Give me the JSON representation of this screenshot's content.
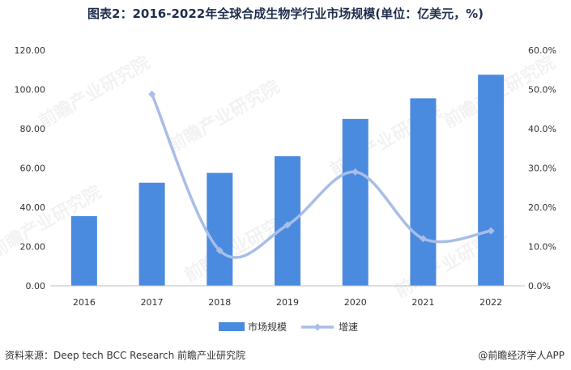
{
  "title": "图表2：2016-2022年全球合成生物学行业市场规模(单位：亿美元，%)",
  "source": "资料来源：Deep tech BCC Research 前瞻产业研究院",
  "brand": "@前瞻经济学人APP",
  "watermark": "前瞻产业研究院",
  "colors": {
    "bar": "#4a8be0",
    "line": "#a8bde8",
    "grid": "#e6e6e6",
    "axis": "#bfbfbf"
  },
  "chart_data": {
    "type": "bar",
    "categories": [
      "2016",
      "2017",
      "2018",
      "2019",
      "2020",
      "2021",
      "2022"
    ],
    "series": [
      {
        "name": "市场规模",
        "type": "bar",
        "axis": "left",
        "values": [
          35.5,
          52.5,
          57.5,
          66.0,
          85.0,
          95.5,
          107.5
        ]
      },
      {
        "name": "增速",
        "type": "line",
        "axis": "right",
        "values": [
          null,
          48.8,
          9.0,
          15.5,
          29.0,
          12.0,
          14.0
        ]
      }
    ],
    "y_left": {
      "min": 0,
      "max": 120,
      "step": 20,
      "tick_labels": [
        "0.00",
        "20.00",
        "40.00",
        "60.00",
        "80.00",
        "100.00",
        "120.00"
      ]
    },
    "y_right": {
      "min": 0,
      "max": 60,
      "step": 10,
      "tick_labels": [
        "0.0%",
        "10.0%",
        "20.0%",
        "30.0%",
        "40.0%",
        "50.0%",
        "60.0%"
      ]
    },
    "grid": false,
    "legend": "bottom"
  }
}
